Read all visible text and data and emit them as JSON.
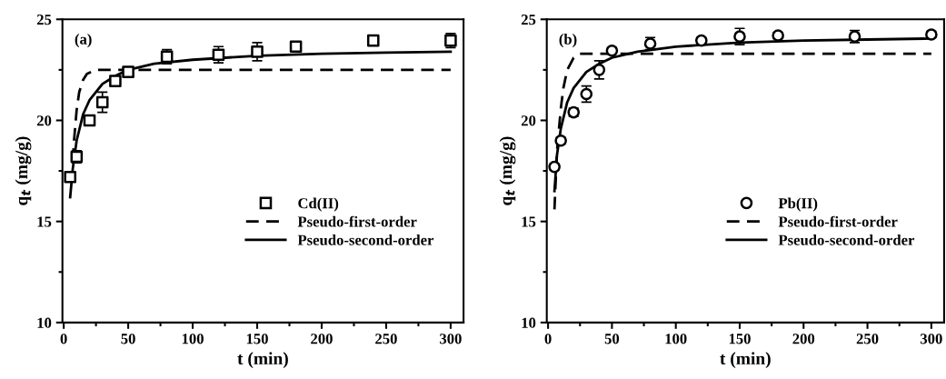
{
  "chart_data": [
    {
      "type": "scatter",
      "xlabel": "t (min)",
      "ylabel": "q$_{t}$ (mg/g)",
      "annotations": [
        "(a)"
      ],
      "xlim": [
        -1,
        310
      ],
      "ylim": [
        10,
        25
      ],
      "xticks": [
        0,
        50,
        100,
        150,
        200,
        250,
        300
      ],
      "yticks": [
        10,
        15,
        20,
        25
      ],
      "grid": false,
      "legend": "lower right",
      "series": [
        {
          "name": "Cd(II)",
          "marker": "square",
          "color": "#000000",
          "x": [
            5,
            10,
            20,
            30,
            40,
            50,
            80,
            120,
            150,
            180,
            240,
            300
          ],
          "values": [
            17.2,
            18.2,
            20.0,
            20.9,
            21.95,
            22.4,
            23.15,
            23.25,
            23.4,
            23.65,
            23.95,
            23.95
          ],
          "errors": [
            0.15,
            0.3,
            0.15,
            0.5,
            0.2,
            0.15,
            0.35,
            0.4,
            0.45,
            0.15,
            0.15,
            0.35
          ]
        },
        {
          "name": "Pseudo-first-order",
          "type": "line",
          "line_style": "dashed",
          "color": "#000000",
          "x": [
            7,
            8,
            10,
            12,
            15,
            18,
            25,
            300
          ],
          "values": [
            18.0,
            19.0,
            20.5,
            21.4,
            22.0,
            22.3,
            22.5,
            22.5
          ]
        },
        {
          "name": "Pseudo-second-order",
          "type": "line",
          "line_style": "solid",
          "color": "#000000",
          "x": [
            5,
            7,
            10,
            15,
            20,
            30,
            40,
            50,
            70,
            100,
            150,
            200,
            250,
            300
          ],
          "values": [
            16.2,
            17.6,
            19.0,
            20.3,
            21.0,
            21.8,
            22.2,
            22.5,
            22.8,
            23.0,
            23.2,
            23.3,
            23.35,
            23.4
          ]
        }
      ]
    },
    {
      "type": "scatter",
      "xlabel": "t (min)",
      "ylabel": "q$_{t}$ (mg/g)",
      "annotations": [
        "(b)"
      ],
      "xlim": [
        -1,
        310
      ],
      "ylim": [
        10,
        25
      ],
      "xticks": [
        0,
        50,
        100,
        150,
        200,
        250,
        300
      ],
      "yticks": [
        10,
        15,
        20,
        25
      ],
      "grid": false,
      "legend": "lower right",
      "series": [
        {
          "name": "Pb(II)",
          "marker": "circle",
          "color": "#000000",
          "x": [
            5,
            10,
            20,
            30,
            40,
            50,
            80,
            120,
            150,
            180,
            240,
            300
          ],
          "values": [
            17.7,
            19.0,
            20.4,
            21.3,
            22.5,
            23.45,
            23.8,
            23.95,
            24.15,
            24.2,
            24.15,
            24.25
          ],
          "errors": [
            0.15,
            0.15,
            0.2,
            0.4,
            0.45,
            0.15,
            0.3,
            0.15,
            0.4,
            0.15,
            0.3,
            0.15
          ]
        },
        {
          "name": "Pseudo-first-order",
          "type": "line",
          "line_style": "dashed",
          "color": "#000000",
          "x": [
            5,
            7,
            10,
            12,
            15,
            20,
            25,
            300
          ],
          "values": [
            15.6,
            18.5,
            20.6,
            21.6,
            22.5,
            23.1,
            23.3,
            23.3
          ]
        },
        {
          "name": "Pseudo-second-order",
          "type": "line",
          "line_style": "solid",
          "color": "#000000",
          "x": [
            5,
            7,
            10,
            15,
            20,
            30,
            40,
            50,
            70,
            100,
            150,
            200,
            250,
            300
          ],
          "values": [
            16.5,
            18.3,
            19.6,
            20.9,
            21.6,
            22.4,
            22.8,
            23.1,
            23.4,
            23.65,
            23.85,
            23.95,
            24.0,
            24.05
          ]
        }
      ]
    }
  ]
}
